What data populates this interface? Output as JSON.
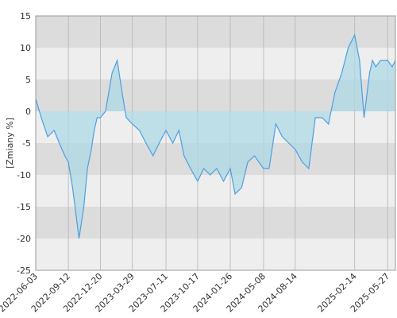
{
  "chart_data": {
    "type": "area",
    "title": "",
    "ylabel": "[Zmiany %]",
    "xlabel": "",
    "ylim": [
      -25,
      15
    ],
    "yticks": [
      15,
      10,
      5,
      0,
      -5,
      -10,
      -15,
      -20,
      -25
    ],
    "xlim": [
      "2022-06-03",
      "2025-06-20"
    ],
    "xticks": [
      "2022-06-03",
      "2022-09-12",
      "2022-12-20",
      "2023-03-29",
      "2023-07-11",
      "2023-10-17",
      "2024-01-26",
      "2024-05-08",
      "2024-08-14",
      "2025-02-14",
      "2025-05-27"
    ],
    "grid": true,
    "legend": "none",
    "colors": {
      "line": "#4d9fe0",
      "fill": "#add8e6",
      "band_dark": "#dcdcdc",
      "band_light": "#eeeeee",
      "gridline": "#b4b4b4"
    },
    "series": [
      {
        "x": [
          "2022-06-03",
          "2022-06-20",
          "2022-07-10",
          "2022-07-30",
          "2022-08-15",
          "2022-09-01",
          "2022-09-12",
          "2022-09-25",
          "2022-10-15",
          "2022-10-30",
          "2022-11-10",
          "2022-11-22",
          "2022-12-01",
          "2022-12-10",
          "2022-12-20",
          "2023-01-05",
          "2023-01-25",
          "2023-02-10",
          "2023-02-25",
          "2023-03-10",
          "2023-03-29",
          "2023-04-20",
          "2023-05-10",
          "2023-06-01",
          "2023-06-20",
          "2023-07-11",
          "2023-08-01",
          "2023-08-20",
          "2023-09-05",
          "2023-09-25",
          "2023-10-17",
          "2023-11-05",
          "2023-11-25",
          "2023-12-15",
          "2024-01-05",
          "2024-01-26",
          "2024-02-10",
          "2024-03-01",
          "2024-03-20",
          "2024-04-10",
          "2024-05-08",
          "2024-05-25",
          "2024-06-15",
          "2024-07-05",
          "2024-07-25",
          "2024-08-14",
          "2024-09-05",
          "2024-09-25",
          "2024-10-15",
          "2024-11-05",
          "2024-11-25",
          "2024-12-15",
          "2025-01-05",
          "2025-01-25",
          "2025-02-14",
          "2025-03-01",
          "2025-03-15",
          "2025-04-01",
          "2025-04-10",
          "2025-04-20",
          "2025-05-05",
          "2025-05-27",
          "2025-06-10",
          "2025-06-20"
        ],
        "values": [
          2,
          -1,
          -4,
          -3,
          -5,
          -7,
          -8,
          -12,
          -20,
          -15,
          -9,
          -6,
          -3,
          -1,
          -1,
          0,
          6,
          8,
          3,
          -1,
          -2,
          -3,
          -5,
          -7,
          -5,
          -3,
          -5,
          -3,
          -7,
          -9,
          -11,
          -9,
          -10,
          -9,
          -11,
          -9,
          -13,
          -12,
          -8,
          -7,
          -9,
          -9,
          -2,
          -4,
          -5,
          -6,
          -8,
          -9,
          -1,
          -1,
          -2,
          3,
          6,
          10,
          12,
          8,
          -1,
          6,
          8,
          7,
          8,
          8,
          7,
          8
        ]
      }
    ]
  }
}
